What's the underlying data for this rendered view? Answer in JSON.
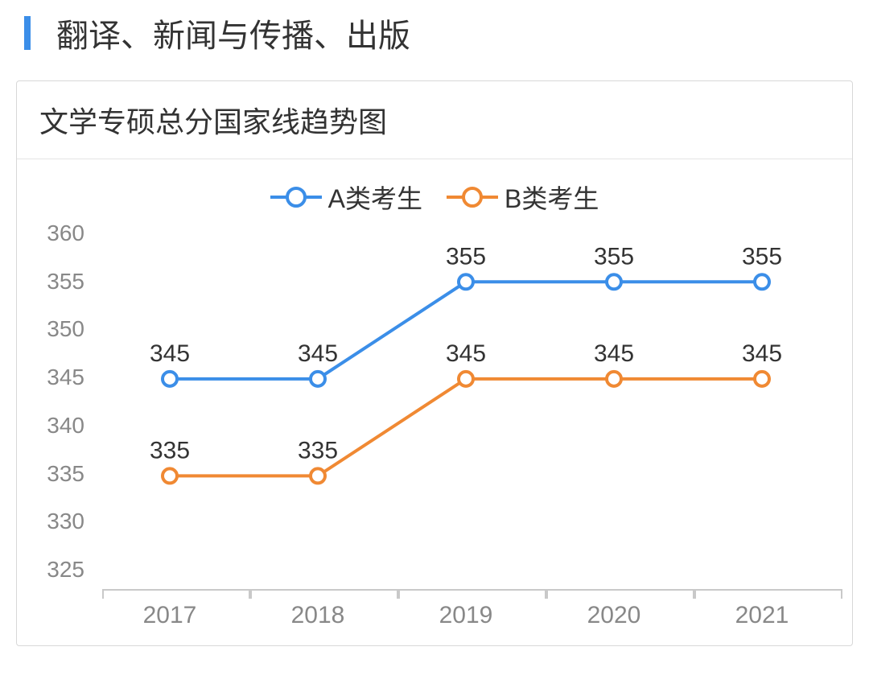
{
  "header": {
    "title": "翻译、新闻与传播、出版"
  },
  "chart": {
    "type": "line",
    "title": "文学专硕总分国家线趋势图",
    "background_color": "#ffffff",
    "border_color": "#d8d8d8",
    "axis_color": "#c9c9c9",
    "tick_font_color": "#888888",
    "title_font_color": "#333333",
    "line_width": 4,
    "marker_radius": 9,
    "marker_stroke": 4,
    "marker_fill": "#ffffff",
    "ylim": [
      325,
      360
    ],
    "ytick_step": 5,
    "yticks": [
      360,
      355,
      350,
      345,
      340,
      335,
      330,
      325
    ],
    "categories": [
      "2017",
      "2018",
      "2019",
      "2020",
      "2021"
    ],
    "series": [
      {
        "key": "A",
        "label": "A类考生",
        "color": "#3b8ee8",
        "values": [
          345,
          345,
          355,
          355,
          355
        ]
      },
      {
        "key": "B",
        "label": "B类考生",
        "color": "#f08933",
        "values": [
          335,
          335,
          345,
          345,
          345
        ]
      }
    ],
    "value_label_fontsize": 30,
    "value_label_color": "#333333"
  }
}
